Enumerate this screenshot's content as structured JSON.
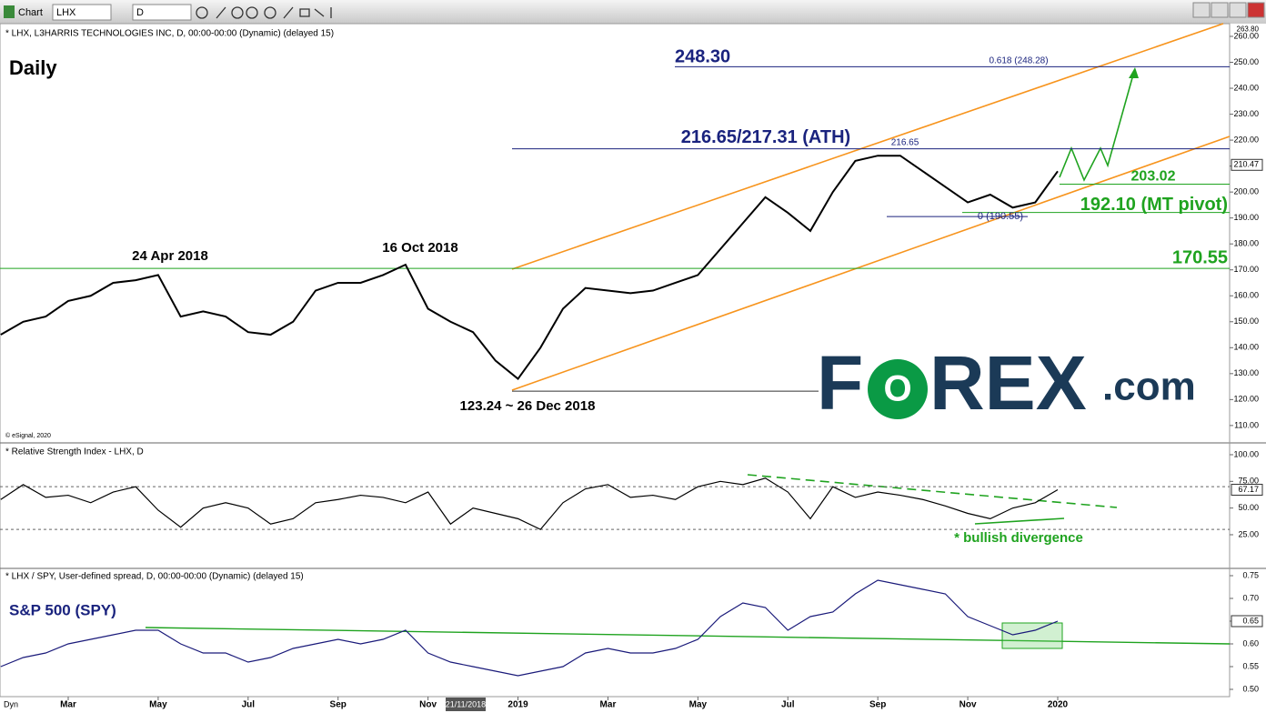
{
  "toolbar": {
    "title": "Chart",
    "symbol": "LHX",
    "interval": "D"
  },
  "x_axis": {
    "categories": [
      null,
      null,
      null,
      "Mar",
      null,
      null,
      null,
      "May",
      null,
      null,
      null,
      "Jul",
      null,
      null,
      null,
      "Sep",
      null,
      null,
      null,
      "Nov",
      null,
      null,
      null,
      "2019",
      null,
      null,
      null,
      "Mar",
      null,
      null,
      null,
      "May",
      null,
      null,
      null,
      "Jul",
      null,
      null,
      null,
      "Sep",
      null,
      null,
      null,
      "Nov",
      null,
      null,
      null,
      "2020"
    ],
    "cursor_date": "21/11/2018",
    "corner": "Dyn"
  },
  "logo": [
    "F",
    "O",
    "REX",
    ".com"
  ],
  "chart_data": [
    {
      "type": "line",
      "title": "* LHX, L3HARRIS TECHNOLOGIES INC, D, 00:00-00:00 (Dynamic) (delayed 15)",
      "subtitle": "Daily",
      "note": "© eSignal, 2020",
      "color": "#000000",
      "values": [
        145,
        150,
        152,
        158,
        160,
        165,
        166,
        168,
        152,
        154,
        152,
        146,
        145,
        150,
        162,
        165,
        165,
        168,
        172,
        155,
        150,
        146,
        135,
        128,
        140,
        155,
        163,
        162,
        161,
        162,
        165,
        168,
        178,
        188,
        198,
        192,
        185,
        200,
        212,
        214,
        214,
        208,
        202,
        196,
        199,
        194,
        196,
        208
      ],
      "ylim": [
        104,
        263.5
      ],
      "yticks": [
        {
          "value": 110,
          "label": "110.00"
        },
        {
          "value": 120,
          "label": "120.00"
        },
        {
          "value": 130,
          "label": "130.00"
        },
        {
          "value": 140,
          "label": "140.00"
        },
        {
          "value": 150,
          "label": "150.00"
        },
        {
          "value": 160,
          "label": "160.00"
        },
        {
          "value": 170,
          "label": "170.00"
        },
        {
          "value": 180,
          "label": "180.00"
        },
        {
          "value": 190,
          "label": "190.00"
        },
        {
          "value": 200,
          "label": "200.00"
        },
        {
          "value": 210,
          "label": "210.00"
        },
        {
          "value": 220,
          "label": "220.00"
        },
        {
          "value": 230,
          "label": "230.00"
        },
        {
          "value": 240,
          "label": "240.00"
        },
        {
          "value": 250,
          "label": "250.00"
        },
        {
          "value": 260,
          "label": "260.00"
        }
      ],
      "axis_top": {
        "value": 263.8,
        "label": "263.80"
      },
      "current": 210.47,
      "levels": [
        {
          "label": "248.30",
          "value": 248.3
        },
        {
          "label": "216.65/217.31 (ATH)",
          "value": 216.65
        },
        {
          "label": "203.02",
          "value": 203.02
        },
        {
          "label": "192.10 (MT pivot)",
          "value": 192.1
        },
        {
          "label": "170.55",
          "value": 170.55
        },
        {
          "label": "0 (190.55)",
          "value": 190.55
        },
        {
          "label": "123.24 ~ 26 Dec 2018",
          "value": 123.24
        }
      ],
      "annotations": [
        "24 Apr 2018",
        "16 Oct 2018",
        "0.618 (248.28)",
        "216.65"
      ]
    },
    {
      "type": "line",
      "title": "* Relative Strength Index - LHX, D",
      "color": "#000000",
      "values": [
        58,
        72,
        60,
        62,
        55,
        65,
        70,
        48,
        32,
        50,
        55,
        50,
        35,
        40,
        55,
        58,
        62,
        60,
        55,
        65,
        35,
        50,
        45,
        40,
        30,
        55,
        68,
        72,
        60,
        62,
        58,
        70,
        75,
        72,
        78,
        65,
        40,
        70,
        60,
        65,
        62,
        58,
        52,
        45,
        40,
        50,
        55,
        67.17
      ],
      "ylim": [
        -4,
        108.5
      ],
      "yticks": [
        {
          "value": 25,
          "label": "25.00"
        },
        {
          "value": 50,
          "label": "50.00"
        },
        {
          "value": 75,
          "label": "75.00"
        },
        {
          "value": 100,
          "label": "100.00"
        }
      ],
      "reference_lines": [
        30,
        70
      ],
      "current": 67.17,
      "annotations": [
        "* bullish divergence"
      ]
    },
    {
      "type": "line",
      "title": "* LHX / SPY, User-defined spread, D, 00:00-00:00 (Dynamic) (delayed 15)",
      "subtitle": "S&P 500 (SPY)",
      "color": "#1a1a7a",
      "values": [
        0.55,
        0.57,
        0.58,
        0.6,
        0.61,
        0.62,
        0.63,
        0.63,
        0.6,
        0.58,
        0.58,
        0.56,
        0.57,
        0.59,
        0.6,
        0.61,
        0.6,
        0.61,
        0.63,
        0.58,
        0.56,
        0.55,
        0.54,
        0.53,
        0.54,
        0.55,
        0.58,
        0.59,
        0.58,
        0.58,
        0.59,
        0.61,
        0.66,
        0.69,
        0.68,
        0.63,
        0.66,
        0.67,
        0.71,
        0.74,
        0.73,
        0.72,
        0.71,
        0.66,
        0.64,
        0.62,
        0.63,
        0.65
      ],
      "ylim": [
        0.486,
        0.762
      ],
      "yticks": [
        {
          "value": 0.5,
          "label": "0.50"
        },
        0.55,
        {
          "value": 0.6,
          "label": "0.60"
        },
        0.65,
        {
          "value": 0.7,
          "label": "0.70"
        },
        0.75
      ],
      "current": 0.65
    }
  ]
}
